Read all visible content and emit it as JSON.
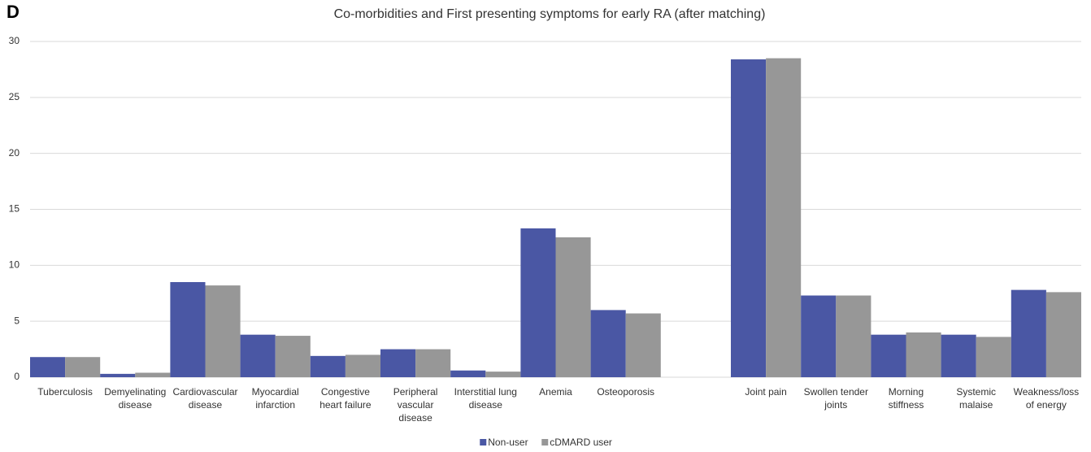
{
  "chart_data": {
    "type": "bar",
    "panel_label": "D",
    "title": "Co-morbidities  and First presenting symptoms for early RA (after matching)",
    "categories": [
      "Tuberculosis",
      "Demyelinating disease",
      "Cardiovascular disease",
      "Myocardial infarction",
      "Congestive heart failure",
      "Peripheral vascular disease",
      "Interstitial lung disease",
      "Anemia",
      "Osteoporosis",
      null,
      "Joint pain",
      "Swollen tender joints",
      "Morning stiffness",
      "Systemic malaise",
      "Weakness/loss of energy"
    ],
    "series": [
      {
        "name": "Non-user",
        "color": "#4a57a4",
        "values": [
          1.8,
          0.3,
          8.5,
          3.8,
          1.9,
          2.5,
          0.6,
          13.3,
          6.0,
          null,
          28.4,
          7.3,
          3.8,
          3.8,
          7.8
        ]
      },
      {
        "name": "cDMARD user",
        "color": "#979797",
        "values": [
          1.8,
          0.4,
          8.2,
          3.7,
          2.0,
          2.5,
          0.5,
          12.5,
          5.7,
          null,
          28.5,
          7.3,
          4.0,
          3.6,
          7.6
        ]
      }
    ],
    "ylim": [
      0,
      30
    ],
    "yticks": [
      0,
      5,
      10,
      15,
      20,
      25,
      30
    ],
    "grid": true,
    "legend": "bottom"
  }
}
